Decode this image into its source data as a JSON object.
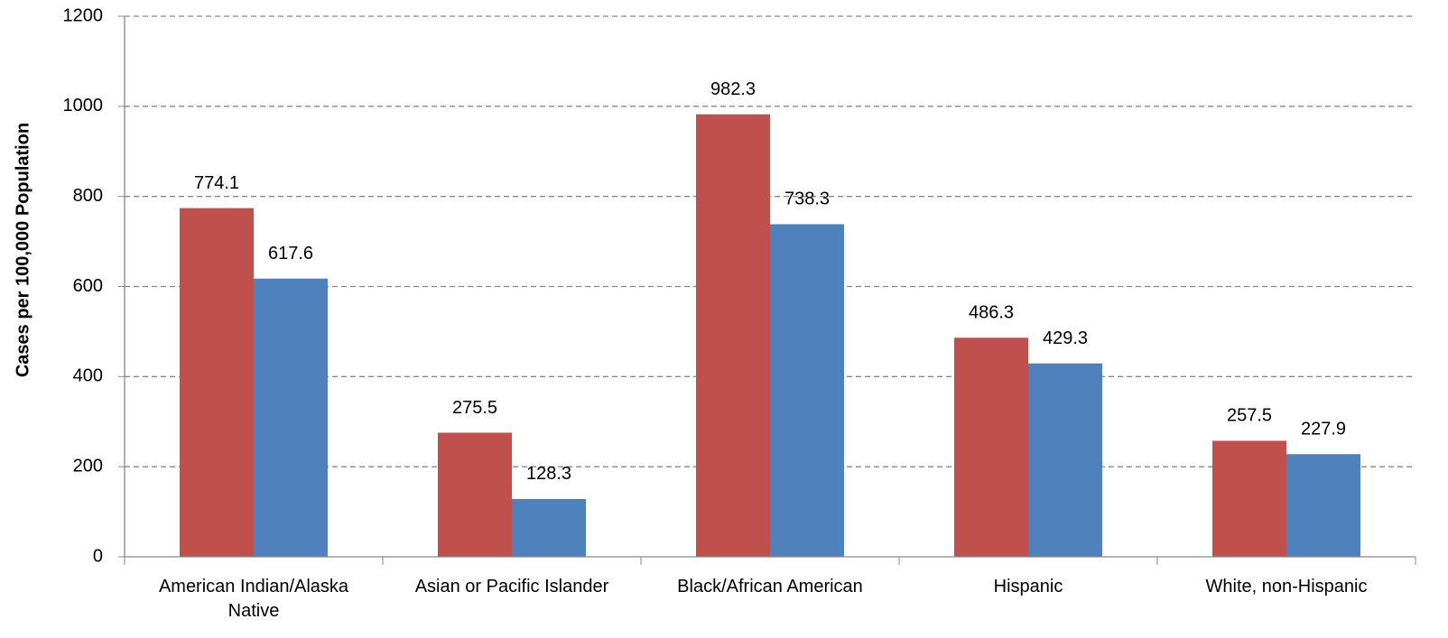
{
  "chart_data": {
    "type": "bar",
    "y_label": "Cases per 100,000 Population",
    "categories": [
      "American Indian/Alaska Native",
      "Asian or Pacific Islander",
      "Black/African American",
      "Hispanic",
      "White, non-Hispanic"
    ],
    "series": [
      {
        "color": "#c0504d",
        "values": [
          774.1,
          275.5,
          982.3,
          486.3,
          257.5
        ]
      },
      {
        "color": "#4f81bd",
        "values": [
          617.6,
          128.3,
          738.3,
          429.3,
          227.9
        ]
      }
    ],
    "ylim": [
      0,
      1200
    ],
    "yticks": [
      0,
      200,
      400,
      600,
      800,
      1000,
      1200
    ],
    "grid": true
  }
}
